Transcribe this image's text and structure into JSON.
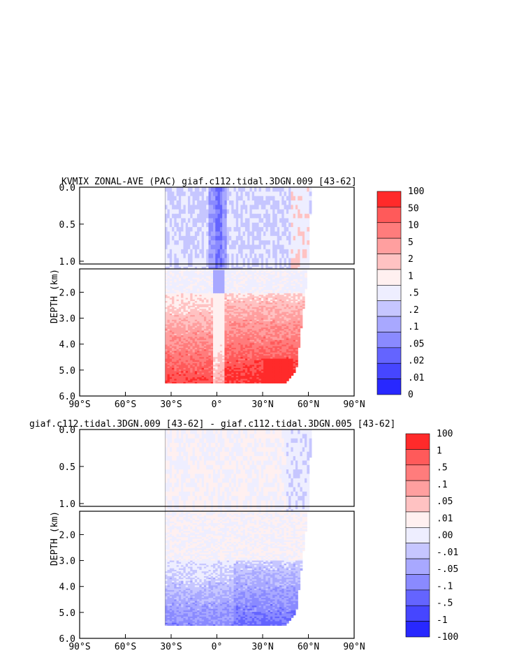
{
  "chart_data": [
    {
      "type": "heatmap",
      "title": "KVMIX ZONAL-AVE (PAC) giaf.c112.tidal.3DGN.009 [43-62]",
      "ylabel": "DEPTH (km)",
      "xlabel": "",
      "x_ticks": [
        "90°S",
        "60°S",
        "30°S",
        "0°",
        "30°N",
        "60°N",
        "90°N"
      ],
      "upper_yticks": [
        "0.0",
        "0.5",
        "1.0"
      ],
      "lower_yticks": [
        "2.0",
        "3.0",
        "4.0",
        "5.0",
        "6.0"
      ],
      "xlim": [
        -90,
        90
      ],
      "ylim": [
        0,
        6
      ],
      "legend": {
        "labels": [
          "100",
          "50",
          "10",
          "5",
          "2",
          "1",
          ".5",
          ".2",
          ".1",
          ".05",
          ".02",
          ".01",
          "0"
        ],
        "colors": [
          "#ff2a2a",
          "#ff5a5a",
          "#ff7c7c",
          "#ff9f9f",
          "#ffc2c2",
          "#fff0f0",
          "#eeeeff",
          "#c6c6ff",
          "#a8a8ff",
          "#8a8aff",
          "#6464ff",
          "#4646ff",
          "#2828ff"
        ]
      }
    },
    {
      "type": "heatmap",
      "title": "giaf.c112.tidal.3DGN.009 [43-62] - giaf.c112.tidal.3DGN.005 [43-62]",
      "ylabel": "DEPTH (km)",
      "xlabel": "",
      "x_ticks": [
        "90°S",
        "60°S",
        "30°S",
        "0°",
        "30°N",
        "60°N",
        "90°N"
      ],
      "upper_yticks": [
        "0.0",
        "0.5",
        "1.0"
      ],
      "lower_yticks": [
        "2.0",
        "3.0",
        "4.0",
        "5.0",
        "6.0"
      ],
      "xlim": [
        -90,
        90
      ],
      "ylim": [
        0,
        6
      ],
      "legend": {
        "labels": [
          "100",
          "1",
          ".5",
          ".1",
          ".05",
          ".01",
          ".00",
          "-.01",
          "-.05",
          "-.1",
          "-.5",
          "-1",
          "-100"
        ],
        "colors": [
          "#ff2a2a",
          "#ff5a5a",
          "#ff7c7c",
          "#ff9f9f",
          "#ffc2c2",
          "#fff0f0",
          "#eeeeff",
          "#c6c6ff",
          "#a8a8ff",
          "#8a8aff",
          "#6464ff",
          "#4646ff",
          "#2828ff"
        ]
      }
    }
  ]
}
